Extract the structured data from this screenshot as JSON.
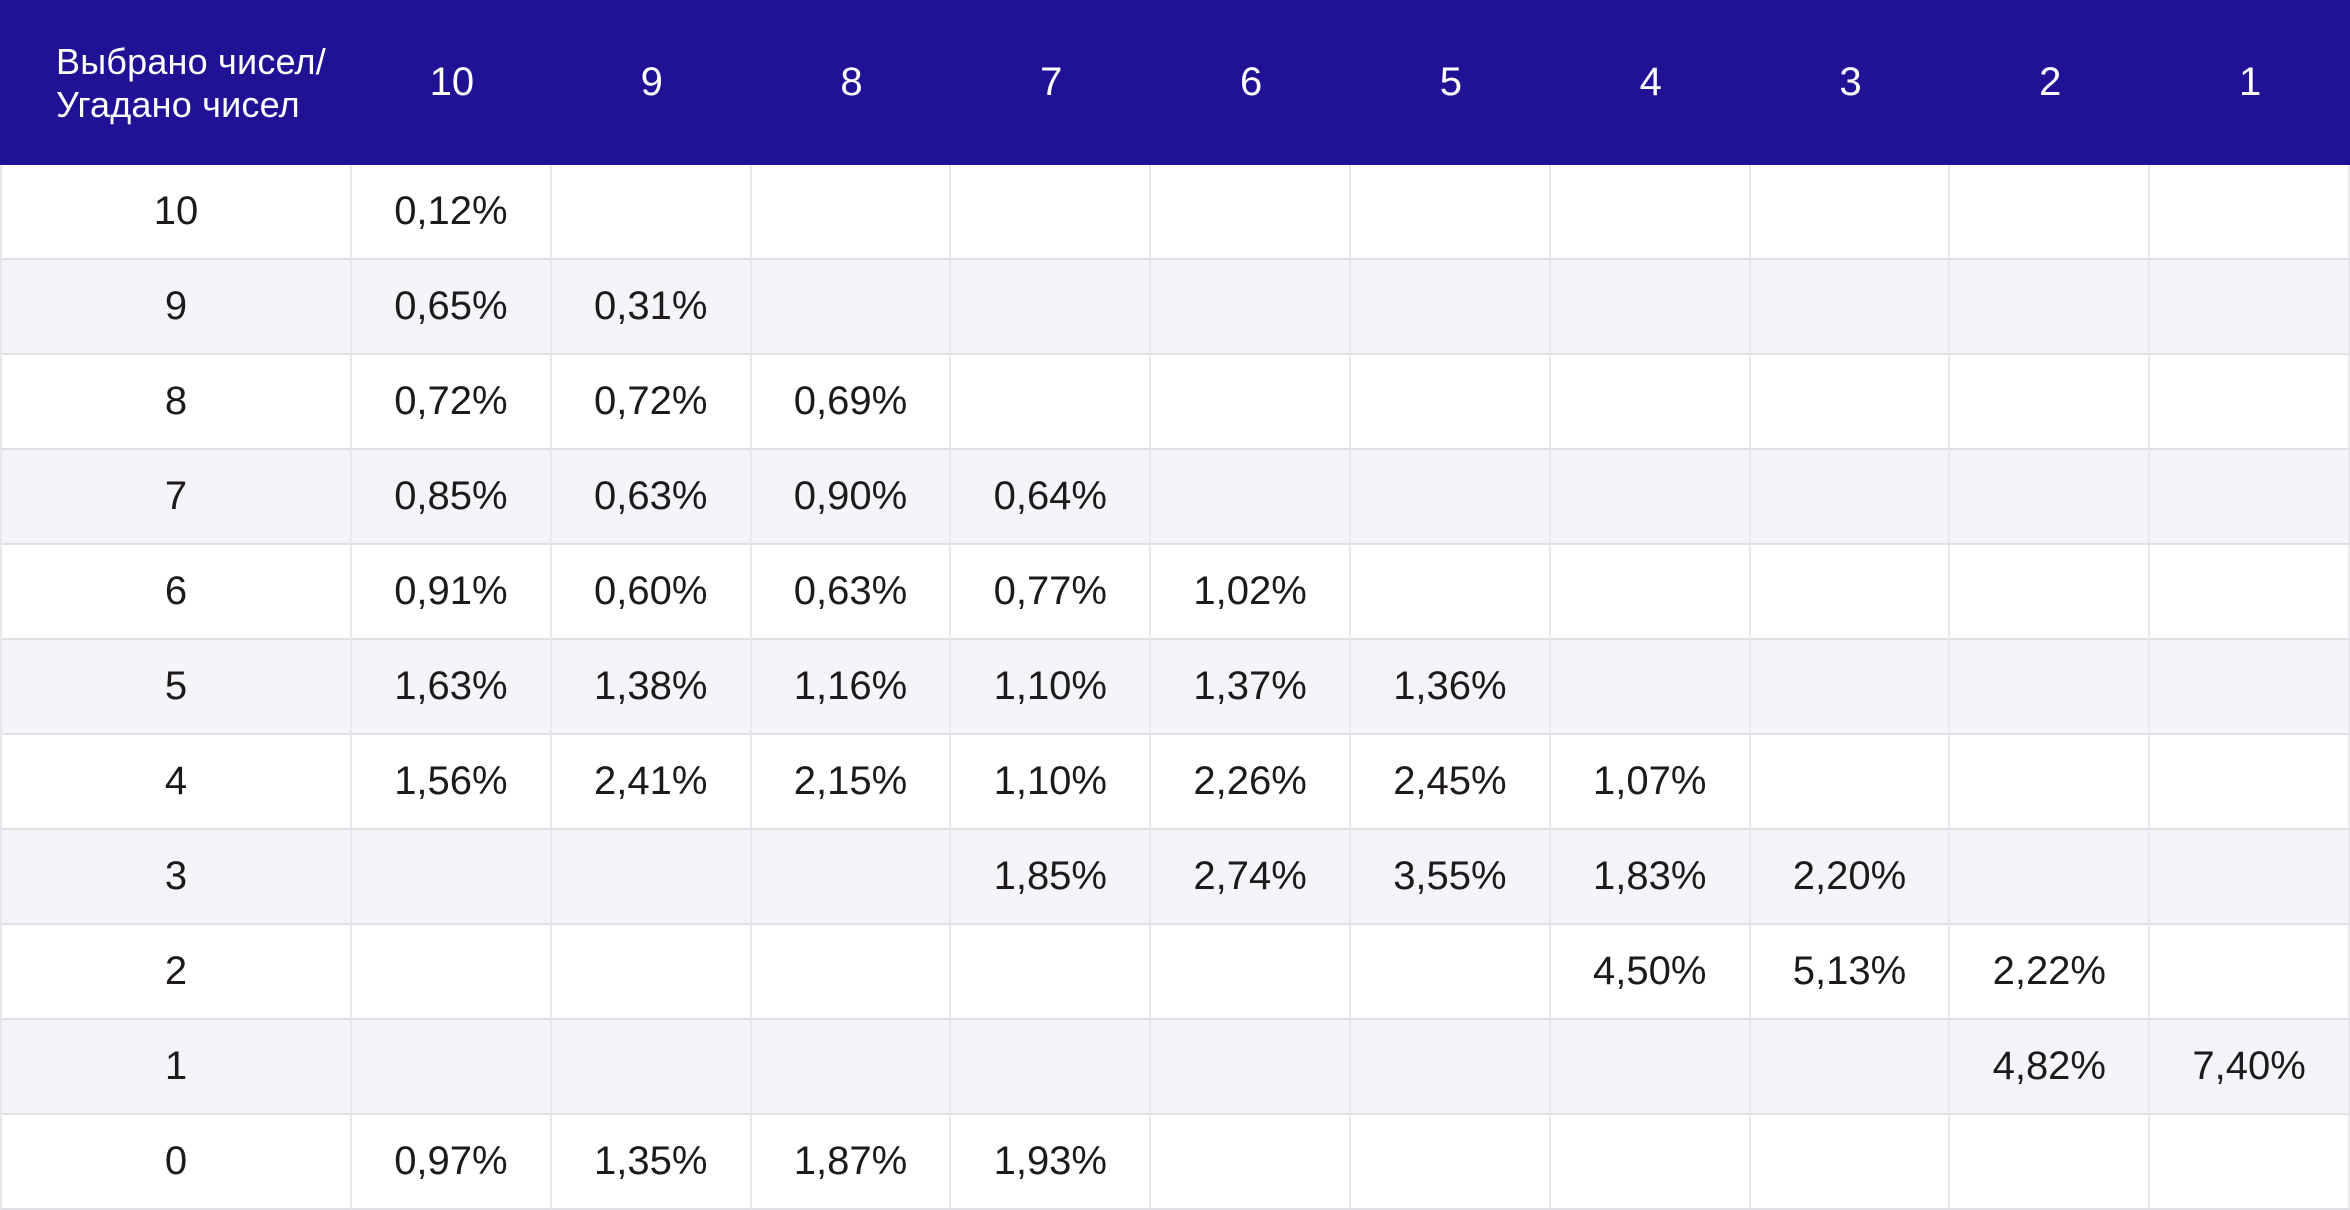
{
  "colors": {
    "header_background": "#1F1295",
    "header_text": "#FFFFFF",
    "row_alt_background": "#F5F4F9",
    "row_background": "#FFFFFF",
    "grid_line_vertical": "#E8E8ED",
    "grid_line_horizontal": "#DFDFE4",
    "cell_text": "#1E191B"
  },
  "chart_data": {
    "type": "table",
    "title": "Выбрано чисел/Угадано чисел",
    "corner_label_lines": [
      "Выбрано чисел/",
      "Угадано чисел"
    ],
    "columns": [
      "10",
      "9",
      "8",
      "7",
      "6",
      "5",
      "4",
      "3",
      "2",
      "1"
    ],
    "rows": [
      {
        "label": "10",
        "cells": [
          "0,12%",
          "",
          "",
          "",
          "",
          "",
          "",
          "",
          "",
          ""
        ]
      },
      {
        "label": "9",
        "cells": [
          "0,65%",
          "0,31%",
          "",
          "",
          "",
          "",
          "",
          "",
          "",
          ""
        ]
      },
      {
        "label": "8",
        "cells": [
          "0,72%",
          "0,72%",
          "0,69%",
          "",
          "",
          "",
          "",
          "",
          "",
          ""
        ]
      },
      {
        "label": "7",
        "cells": [
          "0,85%",
          "0,63%",
          "0,90%",
          "0,64%",
          "",
          "",
          "",
          "",
          "",
          ""
        ]
      },
      {
        "label": "6",
        "cells": [
          "0,91%",
          "0,60%",
          "0,63%",
          "0,77%",
          "1,02%",
          "",
          "",
          "",
          "",
          ""
        ]
      },
      {
        "label": "5",
        "cells": [
          "1,63%",
          "1,38%",
          "1,16%",
          "1,10%",
          "1,37%",
          "1,36%",
          "",
          "",
          "",
          ""
        ]
      },
      {
        "label": "4",
        "cells": [
          "1,56%",
          "2,41%",
          "2,15%",
          "1,10%",
          "2,26%",
          "2,45%",
          "1,07%",
          "",
          "",
          ""
        ]
      },
      {
        "label": "3",
        "cells": [
          "",
          "",
          "",
          "1,85%",
          "2,74%",
          "3,55%",
          "1,83%",
          "2,20%",
          "",
          ""
        ]
      },
      {
        "label": "2",
        "cells": [
          "",
          "",
          "",
          "",
          "",
          "",
          "4,50%",
          "5,13%",
          "2,22%",
          ""
        ]
      },
      {
        "label": "1",
        "cells": [
          "",
          "",
          "",
          "",
          "",
          "",
          "",
          "",
          "4,82%",
          "7,40%"
        ]
      },
      {
        "label": "0",
        "cells": [
          "0,97%",
          "1,35%",
          "1,87%",
          "1,93%",
          "",
          "",
          "",
          "",
          "",
          ""
        ]
      }
    ]
  }
}
